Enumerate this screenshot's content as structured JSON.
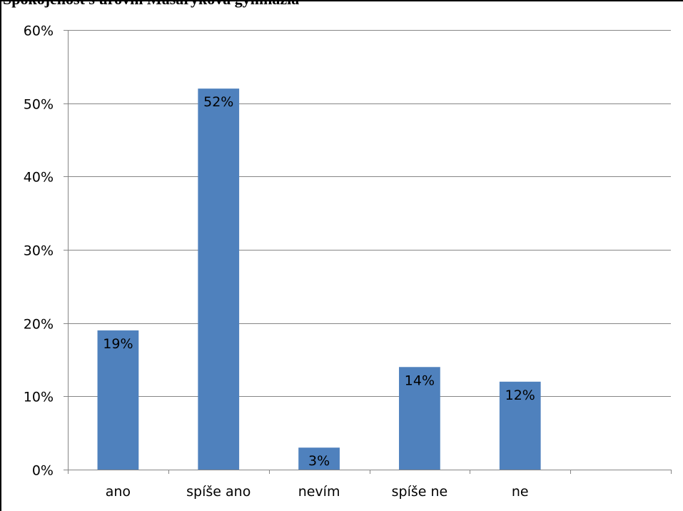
{
  "chart_data": {
    "type": "bar",
    "title": "Spokojenost s úrovní Masarykova gymnázia",
    "xlabel": "",
    "ylabel": "",
    "categories": [
      "ano",
      "spíše ano",
      "nevím",
      "spíše ne",
      "ne",
      ""
    ],
    "values": [
      19,
      52,
      3,
      14,
      12,
      null
    ],
    "data_labels": [
      "19%",
      "52%",
      "3%",
      "14%",
      "12%",
      ""
    ],
    "ylim": [
      0,
      60
    ],
    "yticks": [
      0,
      10,
      20,
      30,
      40,
      50,
      60
    ],
    "ytick_labels": [
      "0%",
      "10%",
      "20%",
      "30%",
      "40%",
      "50%",
      "60%"
    ],
    "grid": true,
    "legend": "none",
    "colors": {
      "bar": "#4F81BD",
      "grid": "#868686",
      "axis": "#868686"
    }
  }
}
